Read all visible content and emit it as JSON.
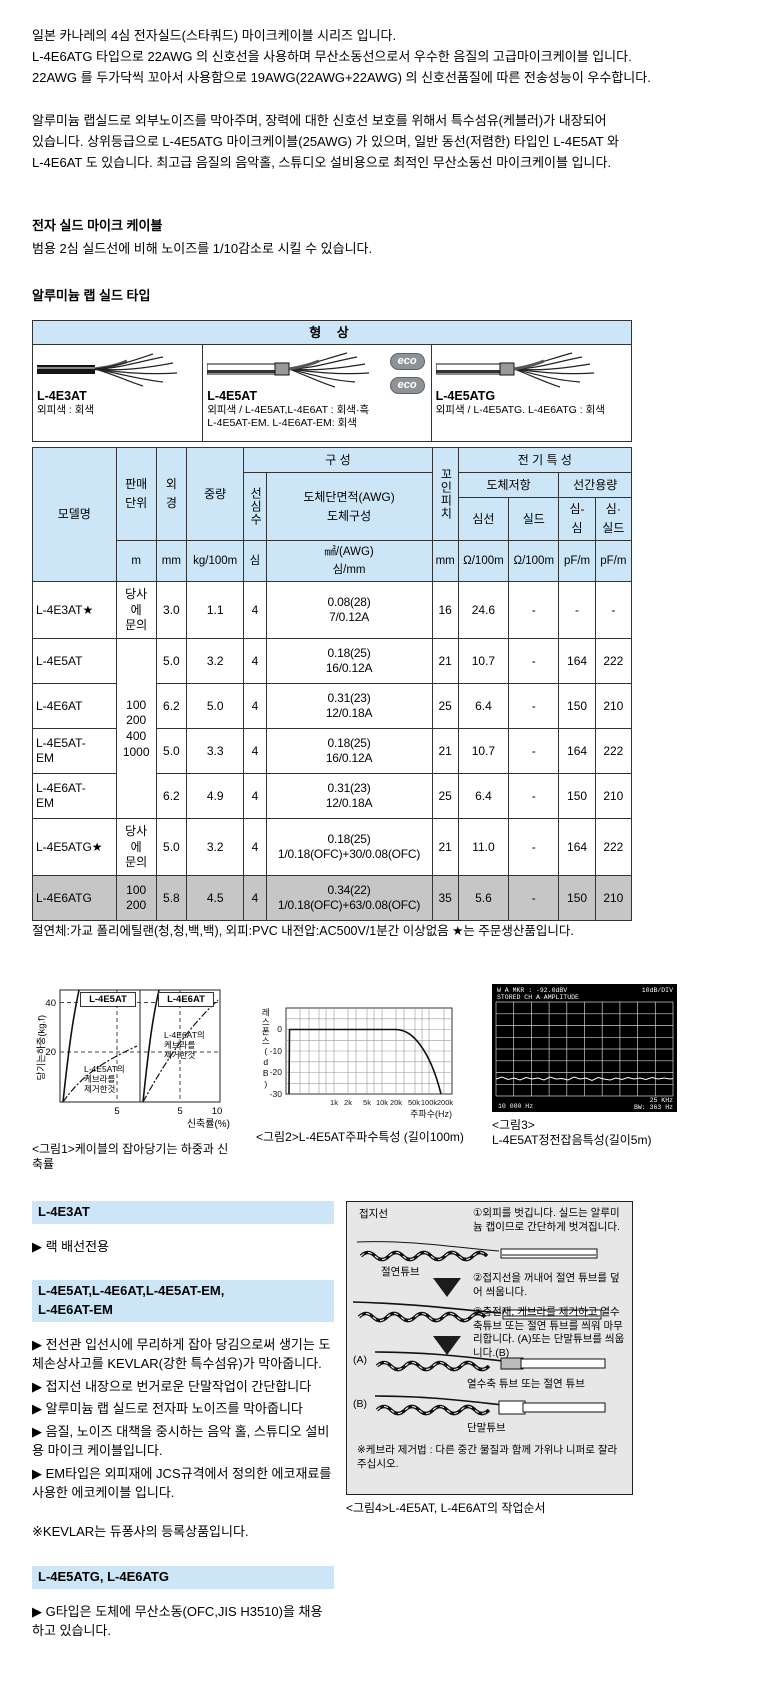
{
  "colors": {
    "header_blue": "#cce6f8",
    "gray_row": "#c6c6c6",
    "badge_gray": "#8e9398",
    "diagram_box_gray": "#e7e7e7",
    "scope_screen": "#000000"
  },
  "intro": {
    "p1": "일본 카나레의 4심 전자실드(스타쿼드) 마이크케이블 시리즈 입니다.\nL-4E6ATG 타입으로 22AWG 의 신호선을 사용하며 무산소동선으로서 우수한 음질의 고급마이크케이블 입니다.\n22AWG 를 두가닥씩 꼬아서 사용함으로 19AWG(22AWG+22AWG) 의 신호선품질에 따른 전송성능이 우수합니다.",
    "p2": "알루미늄 랩실드로 외부노이즈를 막아주며, 장력에 대한 신호선 보호를 위해서 특수섬유(케블러)가 내장되어\n있습니다. 상위등급으로 L-4E5ATG 마이크케이블(25AWG) 가 있으며, 일반 동선(저렴한) 타입인 L-4E5AT 와\nL-4E6AT 도 있습니다. 최고급 음질의 음악홀, 스튜디오 설비용으로 최적인 무산소동선 마이크케이블 입니다."
  },
  "headings": {
    "shield_title": "전자 실드 마이크 케이블",
    "shield_desc": "범용 2심 실드선에 비해 노이즈를 1/10감소로 시킬 수 있습니다.",
    "wrap_title": "알루미늄 랩 실드 타입"
  },
  "shape_table": {
    "title": "형 상",
    "cells": [
      {
        "model": "L-4E3AT",
        "caption": "외피색 : 회색",
        "badges": []
      },
      {
        "model": "L-4E5AT",
        "caption": "외피색 / L-4E5AT,L-4E6AT : 회색·흑\nL-4E5AT-EM. L-4E6AT-EM: 회색",
        "badges": [
          "eco",
          "eco"
        ]
      },
      {
        "model": "L-4E5ATG",
        "caption": "외피색 / L-4E5ATG. L-4E6ATG : 회색",
        "badges": []
      }
    ]
  },
  "spec_table": {
    "group_composition": "구 성",
    "group_electrical": "전 기 특 성",
    "col_model": "모델명",
    "col_sales_unit": "판매\n단위",
    "col_od": "외\n경",
    "col_weight": "중량",
    "col_cores": "선심수",
    "col_conductor": "도체단면적(AWG)\n도체구성",
    "col_pitch": "꼬인피치",
    "col_resistance": "도체저항",
    "col_capacitance": "선간용량",
    "col_r_core": "심선",
    "col_r_shield": "실드",
    "col_c_core_core": "심-\n심",
    "col_c_core_shield": "심·\n실드",
    "unit_m": "m",
    "unit_mm": "mm",
    "unit_kg": "kg/100m",
    "unit_core": "심",
    "unit_conductor": "㎟/(AWG)\n심/mm",
    "unit_pitch": "mm",
    "unit_ohm1": "Ω/100m",
    "unit_ohm2": "Ω/100m",
    "unit_pf1": "pF/m",
    "unit_pf2": "pF/m",
    "rows": [
      {
        "model": "L-4E3AT★",
        "sales_unit": "당사\n에\n문의",
        "sales_rowspan": 1,
        "od": "3.0",
        "weight": "1.1",
        "cores": "4",
        "conductor": "0.08(28)\n7/0.12A",
        "pitch": "16",
        "r_core": "24.6",
        "r_shield": "-",
        "c_cc": "-",
        "c_cs": "-",
        "tall": true
      },
      {
        "model": "L-4E5AT",
        "sales_unit": "100\n200\n400\n1000",
        "sales_rowspan": 4,
        "od": "5.0",
        "weight": "3.2",
        "cores": "4",
        "conductor": "0.18(25)\n16/0.12A",
        "pitch": "21",
        "r_core": "10.7",
        "r_shield": "-",
        "c_cc": "164",
        "c_cs": "222"
      },
      {
        "model": "L-4E6AT",
        "od": "6.2",
        "weight": "5.0",
        "cores": "4",
        "conductor": "0.31(23)\n12/0.18A",
        "pitch": "25",
        "r_core": "6.4",
        "r_shield": "-",
        "c_cc": "150",
        "c_cs": "210"
      },
      {
        "model": "L-4E5AT-\nEM",
        "od": "5.0",
        "weight": "3.3",
        "cores": "4",
        "conductor": "0.18(25)\n16/0.12A",
        "pitch": "21",
        "r_core": "10.7",
        "r_shield": "-",
        "c_cc": "164",
        "c_cs": "222"
      },
      {
        "model": "L-4E6AT-\nEM",
        "od": "6.2",
        "weight": "4.9",
        "cores": "4",
        "conductor": "0.31(23)\n12/0.18A",
        "pitch": "25",
        "r_core": "6.4",
        "r_shield": "-",
        "c_cc": "150",
        "c_cs": "210"
      },
      {
        "model": "L-4E5ATG★",
        "sales_unit": "당사\n에\n문의",
        "sales_rowspan": 1,
        "od": "5.0",
        "weight": "3.2",
        "cores": "4",
        "conductor": "0.18(25)\n1/0.18(OFC)+30/0.08(OFC)",
        "pitch": "21",
        "r_core": "11.0",
        "r_shield": "-",
        "c_cc": "164",
        "c_cs": "222",
        "tall": true
      },
      {
        "model": "L-4E6ATG",
        "sales_unit": "100\n200",
        "sales_rowspan": 1,
        "od": "5.8",
        "weight": "4.5",
        "cores": "4",
        "conductor": "0.34(22)\n1/0.18(OFC)+63/0.08(OFC)",
        "pitch": "35",
        "r_core": "5.6",
        "r_shield": "-",
        "c_cc": "150",
        "c_cs": "210",
        "gray": true
      }
    ],
    "footnote": "절연체:가교 폴리에틸랜(청,청,백,백), 외피:PVC 내전압:AC500V/1분간 이상없음 ★는 주문생산품입니다."
  },
  "chart_data": [
    {
      "type": "line",
      "title": "<그림1>케이블의 잡아당기는 하중과 신축률",
      "xlabel": "신축률(%)",
      "ylabel": "당기는하중(kg.f)",
      "ylim": [
        0,
        45
      ],
      "yticks": [
        "20",
        "40"
      ],
      "xticks": [
        "5",
        "5",
        "10"
      ],
      "grid": "dashed",
      "panels": [
        {
          "label": "L-4E5AT",
          "xlim": [
            0,
            7
          ],
          "series": [
            {
              "name": "L-4E5AT",
              "style": "solid",
              "x": [
                0,
                0.5,
                1,
                1.5,
                2
              ],
              "y": [
                0,
                15,
                28,
                38,
                45
              ]
            },
            {
              "name": "L-4E5AT의\n케브라를\n제거한것",
              "style": "dashdot",
              "x": [
                0,
                1,
                2,
                3,
                5,
                7
              ],
              "y": [
                0,
                10,
                16,
                20,
                25,
                28
              ]
            }
          ]
        },
        {
          "label": "L-4E6AT",
          "xlim": [
            0,
            10
          ],
          "series": [
            {
              "name": "L-4E6AT",
              "style": "solid",
              "x": [
                0,
                0.5,
                1,
                1.5,
                2
              ],
              "y": [
                0,
                16,
                30,
                40,
                45
              ]
            },
            {
              "name": "L-4E6AT의\n케브라를\n제거한것",
              "style": "dashdot",
              "x": [
                0,
                2,
                4,
                6,
                8,
                10
              ],
              "y": [
                0,
                14,
                24,
                31,
                37,
                42
              ]
            }
          ]
        }
      ]
    },
    {
      "type": "line",
      "title": "<그림2>L-4E5AT주파수특성 (길이100m)",
      "xlabel": "주파수(Hz)",
      "ylabel": "레스폰스(dB)",
      "x_scale": "log",
      "xticks": [
        "1k",
        "2k",
        "5k",
        "10k",
        "20k",
        "50k",
        "100k",
        "200k"
      ],
      "yticks": [
        "0",
        "-10",
        "-20",
        "-30"
      ],
      "ylim": [
        -30,
        10
      ],
      "x_hz": [
        1000,
        2000,
        5000,
        10000,
        20000,
        50000,
        100000,
        200000
      ],
      "response_db": [
        0,
        0,
        0,
        0,
        -0.5,
        -3,
        -11,
        -30
      ]
    },
    {
      "type": "scope",
      "title": "<그림3>",
      "title2": "L-4E5AT정전잡음특성(길이5m)",
      "screen_top_left": "W A MKR : -92.0dBV",
      "screen_top_right": "10dB/DIV",
      "screen_line2": "STORED CH A AMPLITUDE",
      "screen_bottom_left": "10 000 Hz",
      "screen_bottom_right": "25 KHz",
      "screen_bottom_right2": "BW: 363 Hz",
      "trace_level_dbv": -92
    }
  ],
  "product_sections": [
    {
      "title": "L-4E3AT",
      "bullets": [
        "▶ 랙 배선전용"
      ],
      "notes": []
    },
    {
      "title": "L-4E5AT,L-4E6AT,L-4E5AT-EM,\nL-4E6AT-EM",
      "bullets": [
        "▶ 전선관 입선시에 무리하게 잡아 당김으로써 생기는 도체손상사고를 KEVLAR(강한 특수섬유)가 막아줍니다.",
        "▶ 접지선 내장으로 번거로운 단말작업이 간단합니다",
        "▶ 알루미늄 랩 실드로 전자파 노이즈를 막아줍니다",
        "▶ 음질, 노이즈 대책을 중시하는 음악 홀, 스튜디오 설비용 마이크 케이블입니다.",
        "▶ EM타입은 외피재에 JCS규격에서 정의한 에코재료를 사용한 에코케이블 입니다."
      ],
      "notes": [
        "※KEVLAR는 듀퐁사의 등록상품입니다."
      ]
    },
    {
      "title": "L-4E5ATG, L-4E6ATG",
      "bullets": [
        "▶ G타입은 도체에 무산소동(OFC,JIS H3510)을 채용하고 있습니다."
      ],
      "notes": []
    }
  ],
  "procedure": {
    "caption": "<그림4>L-4E5AT, L-4E6AT의 작업순서",
    "label_ground": "접지선",
    "label_tube": "절연튜브",
    "step1": "①외피를 벗깁니다. 실드는 알루미늄 캡이므로 간단하게 벗겨집니다.",
    "step2": "②접지선을 꺼내어 절연 튜브를 덮어 씌웁니다.",
    "step3": "③충전재, 케브라를 제거하고 열수축튜브 또는 절연 튜브를 씌워 마무리합니다. (A)또는 단말튜브를 씌웁니다.(B)",
    "label_a": "(A)",
    "label_a_desc": "열수축 튜브 또는 절연 튜브",
    "label_b": "(B)",
    "label_b_desc": "단말튜브",
    "note": "※케브라 제거법 : 다른 중간 물질과 함께 가위나 니퍼로 잘라 주십시오."
  }
}
